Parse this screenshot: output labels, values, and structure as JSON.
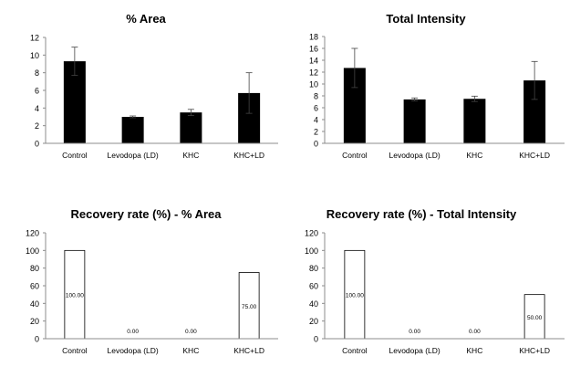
{
  "chart_data": [
    {
      "type": "bar",
      "title": "% Area",
      "categories": [
        "Control",
        "Levodopa (LD)",
        "KHC",
        "KHC+LD"
      ],
      "values": [
        9.3,
        3.0,
        3.5,
        5.7
      ],
      "errors": [
        1.6,
        0.1,
        0.35,
        2.3
      ],
      "ylim": [
        0,
        12
      ],
      "yticks": [
        "0",
        "2",
        "4",
        "6",
        "8",
        "10",
        "12"
      ],
      "style": "filled",
      "bar_color": "#000000",
      "grid": false
    },
    {
      "type": "bar",
      "title": "Total Intensity",
      "categories": [
        "Control",
        "Levodopa (LD)",
        "KHC",
        "KHC+LD"
      ],
      "values": [
        12.7,
        7.4,
        7.5,
        10.6
      ],
      "errors": [
        3.3,
        0.25,
        0.45,
        3.2
      ],
      "ylim": [
        0,
        18
      ],
      "yticks": [
        "0",
        "2",
        "4",
        "6",
        "8",
        "10",
        "12",
        "14",
        "16",
        "18"
      ],
      "style": "filled",
      "bar_color": "#000000",
      "grid": false
    },
    {
      "type": "bar",
      "title": "Recovery rate (%) - % Area",
      "categories": [
        "Control",
        "Levodopa (LD)",
        "KHC",
        "KHC+LD"
      ],
      "values": [
        100,
        0,
        0,
        75
      ],
      "value_labels": [
        "100.00",
        "0.00",
        "0.00",
        "75.00"
      ],
      "ylim": [
        0,
        120
      ],
      "yticks": [
        "0",
        "20",
        "40",
        "60",
        "80",
        "100",
        "120"
      ],
      "style": "outline",
      "bar_color": "#ffffff",
      "grid": false
    },
    {
      "type": "bar",
      "title": "Recovery rate (%) - Total Intensity",
      "categories": [
        "Control",
        "Levodopa (LD)",
        "KHC",
        "KHC+LD"
      ],
      "values": [
        100,
        0,
        0,
        50
      ],
      "value_labels": [
        "100.00",
        "0.00",
        "0.00",
        "50.00"
      ],
      "ylim": [
        0,
        120
      ],
      "yticks": [
        "0",
        "20",
        "40",
        "60",
        "80",
        "100",
        "120"
      ],
      "style": "outline",
      "bar_color": "#ffffff",
      "grid": false
    }
  ]
}
